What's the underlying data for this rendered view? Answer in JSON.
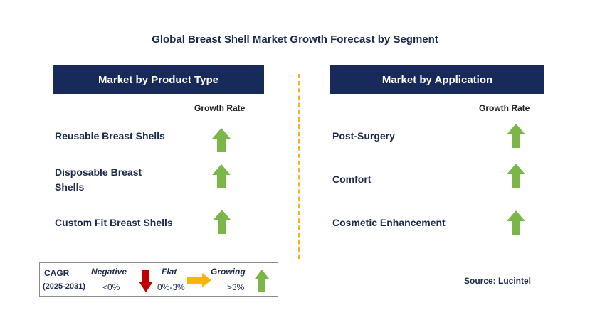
{
  "title": "Global Breast Shell Market Growth Forecast by Segment",
  "left_panel": {
    "header": "Market by Product Type",
    "growth_label": "Growth Rate",
    "items": [
      {
        "label": "Reusable Breast Shells",
        "trend": "growing"
      },
      {
        "label": "Disposable Breast Shells",
        "trend": "growing"
      },
      {
        "label": "Custom Fit Breast Shells",
        "trend": "growing"
      }
    ]
  },
  "right_panel": {
    "header": "Market by Application",
    "growth_label": "Growth Rate",
    "items": [
      {
        "label": "Post-Surgery",
        "trend": "growing"
      },
      {
        "label": "Comfort",
        "trend": "growing"
      },
      {
        "label": "Cosmetic Enhancement",
        "trend": "growing"
      }
    ]
  },
  "legend": {
    "cagr_label": "CAGR",
    "period": "(2025-2031)",
    "negative_label": "Negative",
    "negative_range": "<0%",
    "flat_label": "Flat",
    "flat_range": "0%-3%",
    "growing_label": "Growing",
    "growing_range": ">3%"
  },
  "source": "Source: Lucintel",
  "colors": {
    "header_bg": "#172a5a",
    "growing": "#7ab648",
    "negative": "#c00000",
    "flat": "#f5b800",
    "divider": "#f2b21b"
  }
}
